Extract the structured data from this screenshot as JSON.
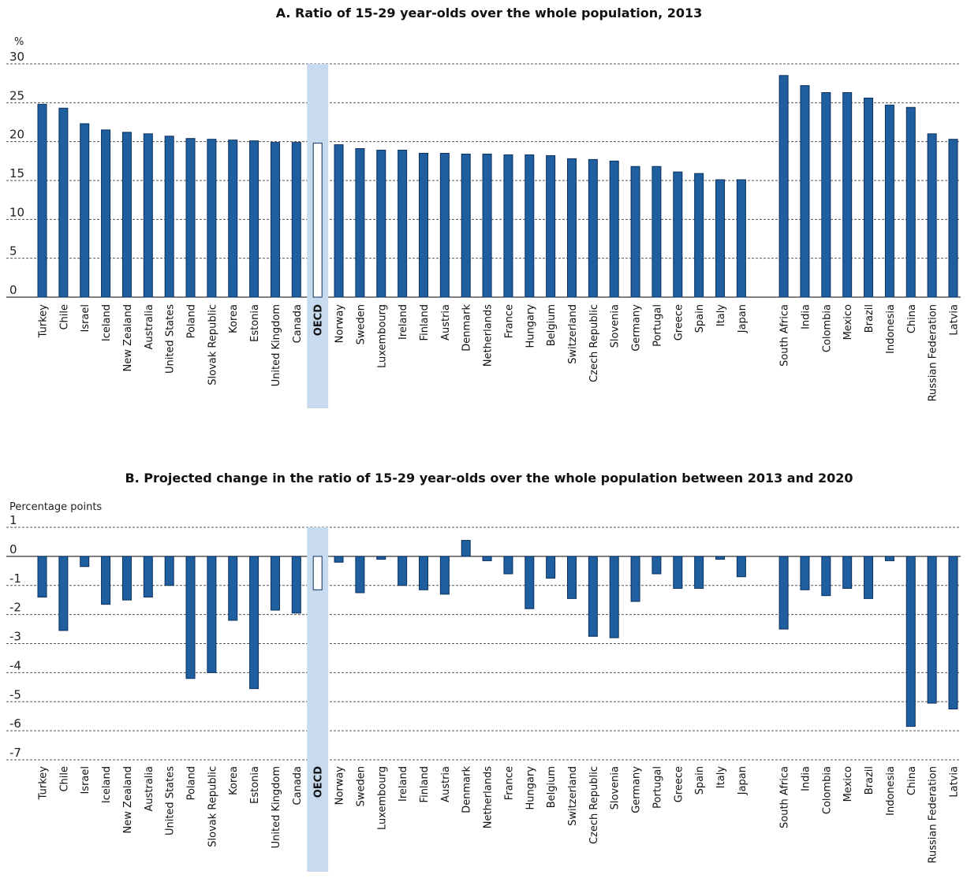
{
  "chart_data": [
    {
      "type": "bar",
      "title": "A. Ratio of 15-29 year-olds over the whole population, 2013",
      "ylabel": "%",
      "ylim": [
        0,
        30
      ],
      "yticks": [
        0,
        5,
        10,
        15,
        20,
        25,
        30
      ],
      "grid": true,
      "highlight": "OECD",
      "categories": [
        "Turkey",
        "Chile",
        "Israel",
        "Iceland",
        "New Zealand",
        "Australia",
        "United States",
        "Poland",
        "Slovak Republic",
        "Korea",
        "Estonia",
        "United Kingdom",
        "Canada",
        "OECD",
        "Norway",
        "Sweden",
        "Luxembourg",
        "Ireland",
        "Finland",
        "Austria",
        "Denmark",
        "Netherlands",
        "France",
        "Hungary",
        "Belgium",
        "Switzerland",
        "Czech Republic",
        "Slovenia",
        "Germany",
        "Portugal",
        "Greece",
        "Spain",
        "Italy",
        "Japan",
        "",
        "South Africa",
        "India",
        "Colombia",
        "Mexico",
        "Brazil",
        "Indonesia",
        "China",
        "Russian Federation",
        "Latvia"
      ],
      "values": [
        24.8,
        24.3,
        22.3,
        21.5,
        21.2,
        21.0,
        20.7,
        20.4,
        20.3,
        20.2,
        20.1,
        19.9,
        19.9,
        19.8,
        19.6,
        19.1,
        18.9,
        18.9,
        18.5,
        18.5,
        18.4,
        18.4,
        18.3,
        18.3,
        18.2,
        17.8,
        17.7,
        17.5,
        16.8,
        16.8,
        16.1,
        15.9,
        15.1,
        15.1,
        null,
        28.5,
        27.2,
        26.3,
        26.3,
        25.6,
        24.7,
        24.4,
        21.0,
        20.3
      ]
    },
    {
      "type": "bar",
      "title": "B. Projected change in the ratio of 15-29 year-olds over the whole population between 2013 and 2020",
      "ylabel": "Percentage points",
      "ylim": [
        -7,
        1
      ],
      "yticks": [
        1,
        0,
        -1,
        -2,
        -3,
        -4,
        -5,
        -6,
        -7
      ],
      "grid": true,
      "highlight": "OECD",
      "categories": [
        "Turkey",
        "Chile",
        "Israel",
        "Iceland",
        "New Zealand",
        "Australia",
        "United States",
        "Poland",
        "Slovak Republic",
        "Korea",
        "Estonia",
        "United Kingdom",
        "Canada",
        "OECD",
        "Norway",
        "Sweden",
        "Luxembourg",
        "Ireland",
        "Finland",
        "Austria",
        "Denmark",
        "Netherlands",
        "France",
        "Hungary",
        "Belgium",
        "Switzerland",
        "Czech Republic",
        "Slovenia",
        "Germany",
        "Portugal",
        "Greece",
        "Spain",
        "Italy",
        "Japan",
        "",
        "South Africa",
        "India",
        "Colombia",
        "Mexico",
        "Brazil",
        "Indonesia",
        "China",
        "Russian Federation",
        "Latvia"
      ],
      "values": [
        -1.4,
        -2.55,
        -0.35,
        -1.65,
        -1.5,
        -1.4,
        -1.0,
        -4.2,
        -4.0,
        -2.2,
        -4.55,
        -1.85,
        -1.95,
        -1.15,
        -0.2,
        -1.25,
        -0.1,
        -1.0,
        -1.15,
        -1.3,
        0.55,
        -0.15,
        -0.6,
        -1.8,
        -0.75,
        -1.45,
        -2.75,
        -2.8,
        -1.55,
        -0.6,
        -1.1,
        -1.1,
        -0.1,
        -0.7,
        null,
        -2.5,
        -1.15,
        -1.35,
        -1.1,
        -1.45,
        -0.15,
        -5.85,
        -5.05,
        -5.25
      ]
    }
  ]
}
